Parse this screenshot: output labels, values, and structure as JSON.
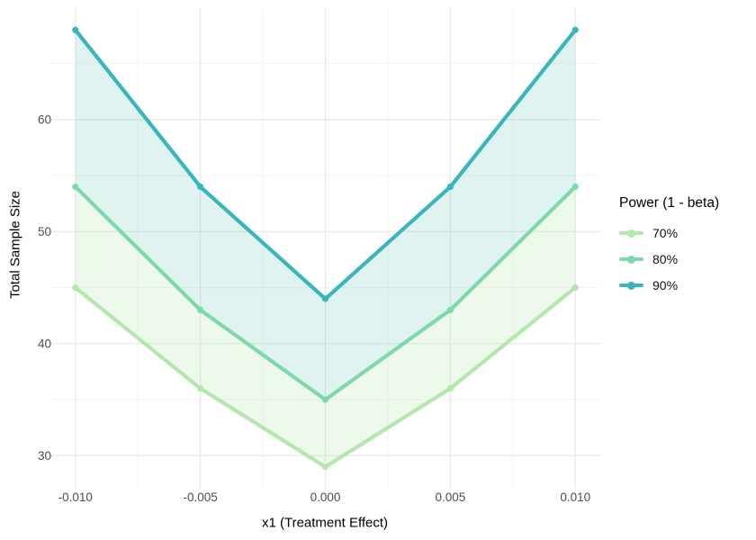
{
  "figure": {
    "xlabel": "x1 (Treatment Effect)",
    "ylabel": "Total Sample Size"
  },
  "legend": {
    "title": "Power (1 - beta)",
    "entries": [
      {
        "label": "70%",
        "color": "#b5e6ae"
      },
      {
        "label": "80%",
        "color": "#7ed8ac"
      },
      {
        "label": "90%",
        "color": "#39b6bd"
      }
    ]
  },
  "chart_data": {
    "type": "line",
    "title": "",
    "xlabel": "x1 (Treatment Effect)",
    "ylabel": "Total Sample Size",
    "legend_title": "Power (1 - beta)",
    "legend_position": "right",
    "x": [
      -0.01,
      -0.005,
      0.0,
      0.005,
      0.01
    ],
    "x_tick_labels": [
      "-0.010",
      "-0.005",
      "0.000",
      "0.005",
      "0.010"
    ],
    "x_minor_ticks": [
      -0.0075,
      -0.0025,
      0.0025,
      0.0075
    ],
    "y_ticks": [
      30,
      40,
      50,
      60
    ],
    "y_minor_ticks": [
      35,
      45,
      55,
      65
    ],
    "x_domain": [
      -0.011,
      0.011
    ],
    "y_domain": [
      27.05,
      69.95
    ],
    "series": [
      {
        "name": "70%",
        "values": [
          45,
          36,
          29,
          36,
          45
        ],
        "color": "#b5e6ae"
      },
      {
        "name": "80%",
        "values": [
          54,
          43,
          35,
          43,
          54
        ],
        "color": "#7ed8ac"
      },
      {
        "name": "90%",
        "values": [
          68,
          54,
          44,
          54,
          68
        ],
        "color": "#39b6bd"
      }
    ],
    "ribbons": [
      {
        "upper": "80%",
        "lower": "70%",
        "fill": "rgba(181,230,174,0.25)"
      },
      {
        "upper": "90%",
        "lower": "80%",
        "fill": "rgba(94,200,180,0.20)"
      }
    ],
    "grid": {
      "major_color": "#e7e7e7",
      "minor_color": "#f2f2f2"
    }
  }
}
